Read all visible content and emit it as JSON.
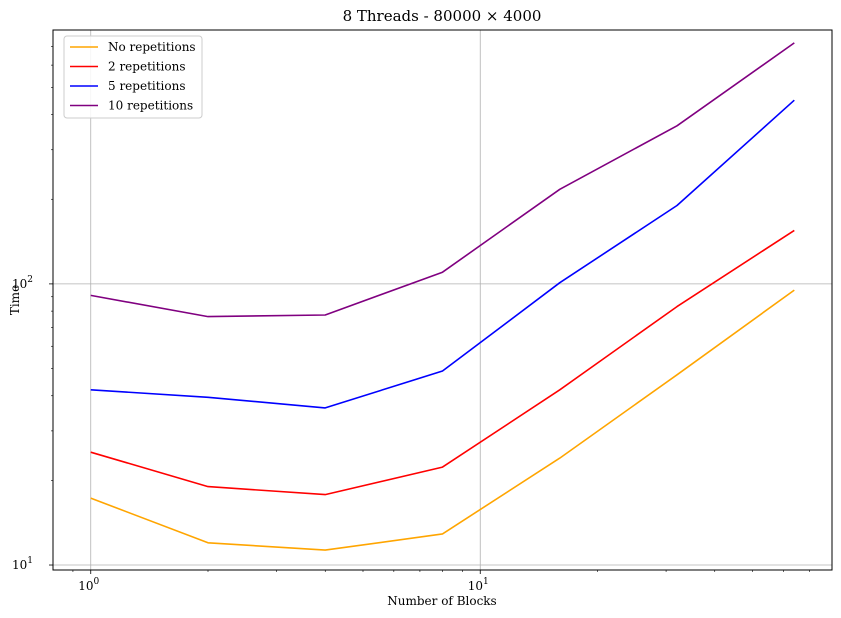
{
  "chart_data": {
    "type": "line",
    "title": "8 Threads - 80000 × 4000",
    "xlabel": "Number of Blocks",
    "ylabel": "Time",
    "xscale": "log",
    "yscale": "log",
    "xlim": [
      0.8,
      80
    ],
    "ylim": [
      9.6,
      800
    ],
    "grid": true,
    "legend_position": "top-left",
    "x": [
      1,
      2,
      4,
      8,
      16,
      32,
      64
    ],
    "x_major_ticks": [
      {
        "value": 1,
        "base": "10",
        "exp": "0"
      },
      {
        "value": 10,
        "base": "10",
        "exp": "1"
      }
    ],
    "y_major_ticks": [
      {
        "value": 10,
        "base": "10",
        "exp": "1"
      },
      {
        "value": 100,
        "base": "10",
        "exp": "2"
      }
    ],
    "series": [
      {
        "name": "No repetitions",
        "color": "#FFA500",
        "values": [
          17.3,
          12.0,
          11.3,
          12.9,
          24.0,
          47.5,
          95.0
        ]
      },
      {
        "name": "2 repetitions",
        "color": "#FF0000",
        "values": [
          25.2,
          19.0,
          17.8,
          22.3,
          42.0,
          83.0,
          155.0
        ]
      },
      {
        "name": "5 repetitions",
        "color": "#0000FF",
        "values": [
          42.0,
          39.5,
          36.2,
          49.0,
          101.0,
          190.0,
          450.0
        ]
      },
      {
        "name": "10 repetitions",
        "color": "#800080",
        "values": [
          91.0,
          76.5,
          77.5,
          110.0,
          217.0,
          365.0,
          720.0
        ]
      }
    ]
  }
}
